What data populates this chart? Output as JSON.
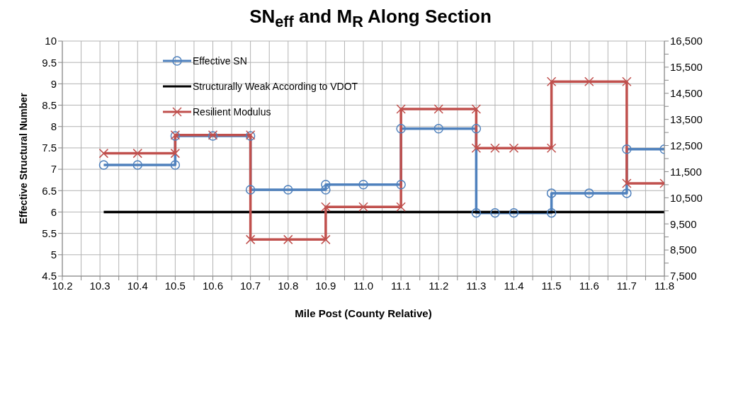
{
  "chart_data": {
    "type": "line",
    "title": "SN$_{eff}$ and M$_{R}$ Along Section",
    "xlabel": "Mile Post (County Relative)",
    "ylabel": "Effective Structural Number",
    "xlim": [
      10.2,
      11.8
    ],
    "xticks": [
      10.2,
      {
        "value": 10.25,
        "label": null
      },
      10.3,
      {
        "value": 10.35,
        "label": null
      },
      10.4,
      {
        "value": 10.45,
        "label": null
      },
      10.5,
      {
        "value": 10.55,
        "label": null
      },
      10.6,
      {
        "value": 10.65,
        "label": null
      },
      10.7,
      {
        "value": 10.75,
        "label": null
      },
      10.8,
      {
        "value": 10.85,
        "label": null
      },
      10.9,
      {
        "value": 10.95,
        "label": null
      },
      {
        "value": 11,
        "label": "11.0"
      },
      {
        "value": 11.05,
        "label": null
      },
      11.1,
      {
        "value": 11.15,
        "label": null
      },
      11.2,
      {
        "value": 11.25,
        "label": null
      },
      11.3,
      {
        "value": 11.35,
        "label": null
      },
      11.4,
      {
        "value": 11.45,
        "label": null
      },
      11.5,
      {
        "value": 11.55,
        "label": null
      },
      11.6,
      {
        "value": 11.65,
        "label": null
      },
      11.7,
      {
        "value": 11.75,
        "label": null
      },
      11.8
    ],
    "ylim": [
      4.5,
      10
    ],
    "yticks": [
      4.5,
      5,
      5.5,
      6,
      6.5,
      7,
      7.5,
      8,
      8.5,
      9,
      9.5,
      10
    ],
    "y2lim": [
      7500,
      16500
    ],
    "y2ticks": [
      {
        "value": 7500,
        "label": "7,500"
      },
      {
        "value": 8000,
        "label": null
      },
      {
        "value": 8500,
        "label": "8,500"
      },
      {
        "value": 9000,
        "label": null
      },
      {
        "value": 9500,
        "label": "9,500"
      },
      {
        "value": 10000,
        "label": null
      },
      {
        "value": 10500,
        "label": "10,500"
      },
      {
        "value": 11000,
        "label": null
      },
      {
        "value": 11500,
        "label": "11,500"
      },
      {
        "value": 12000,
        "label": null
      },
      {
        "value": 12500,
        "label": "12,500"
      },
      {
        "value": 13000,
        "label": null
      },
      {
        "value": 13500,
        "label": "13,500"
      },
      {
        "value": 14000,
        "label": null
      },
      {
        "value": 14500,
        "label": "14,500"
      },
      {
        "value": 15000,
        "label": null
      },
      {
        "value": 15500,
        "label": "15,500"
      },
      {
        "value": 16000,
        "label": null
      },
      {
        "value": 16500,
        "label": "16,500"
      }
    ],
    "grid": true,
    "legend": "top left",
    "line_style": "solid",
    "series": [
      {
        "name": "Effective SN",
        "color": "#4f81bd",
        "marker": "circle",
        "x": [
          10.31,
          10.4,
          10.5,
          10.5,
          10.6,
          10.7,
          10.7,
          10.8,
          10.9,
          10.9,
          11.0,
          11.1,
          11.1,
          11.2,
          11.3,
          11.3,
          11.35,
          11.4,
          11.5,
          11.5,
          11.6,
          11.7,
          11.7,
          11.8
        ],
        "values": [
          7.1,
          7.1,
          7.1,
          7.78,
          7.78,
          7.78,
          6.52,
          6.52,
          6.52,
          6.64,
          6.64,
          6.64,
          7.95,
          7.95,
          7.95,
          5.98,
          5.98,
          5.98,
          5.98,
          6.44,
          6.44,
          6.44,
          7.47,
          7.47
        ]
      },
      {
        "name": "Structurally Weak According to VDOT",
        "color": "#000000",
        "marker": "none",
        "x": [
          10.31,
          11.8
        ],
        "values": [
          6,
          6
        ]
      },
      {
        "name": "Resilient Modulus",
        "color": "#c0504d",
        "marker": "cross",
        "axis": "y2",
        "x": [
          10.31,
          10.4,
          10.5,
          10.5,
          10.6,
          10.7,
          10.7,
          10.8,
          10.9,
          10.9,
          11.0,
          11.1,
          11.1,
          11.2,
          11.3,
          11.3,
          11.35,
          11.4,
          11.5,
          11.5,
          11.6,
          11.7,
          11.7,
          11.8
        ],
        "values": [
          12200,
          12200,
          12200,
          12900,
          12900,
          12900,
          8900,
          8900,
          8900,
          10150,
          10150,
          10150,
          13900,
          13900,
          13900,
          12400,
          12400,
          12400,
          12400,
          14950,
          14950,
          14950,
          11050,
          11050
        ]
      }
    ]
  }
}
